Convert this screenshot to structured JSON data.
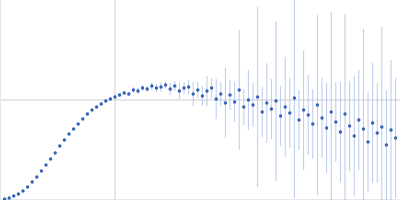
{
  "chart_data": {
    "type": "scatter",
    "marker": "circle",
    "color": "#3461b8",
    "grid": true,
    "tick_labels": false,
    "xlim": [
      0,
      3.478
    ],
    "xticks": [
      1
    ],
    "ylim": [
      0,
      2
    ],
    "yticks": [
      1
    ],
    "x": [
      0.04,
      0.08,
      0.12,
      0.16,
      0.2,
      0.24,
      0.28,
      0.32,
      0.36,
      0.4,
      0.44,
      0.48,
      0.52,
      0.56,
      0.6,
      0.64,
      0.68,
      0.72,
      0.76,
      0.8,
      0.84,
      0.88,
      0.92,
      0.96,
      1.0,
      1.04,
      1.08,
      1.12,
      1.16,
      1.2,
      1.24,
      1.28,
      1.32,
      1.36,
      1.4,
      1.44,
      1.48,
      1.52,
      1.56,
      1.6,
      1.64,
      1.68,
      1.72,
      1.76,
      1.8,
      1.84,
      1.88,
      1.92,
      1.96,
      2.0,
      2.04,
      2.08,
      2.12,
      2.16,
      2.2,
      2.24,
      2.28,
      2.32,
      2.36,
      2.4,
      2.44,
      2.48,
      2.52,
      2.56,
      2.6,
      2.64,
      2.68,
      2.72,
      2.76,
      2.8,
      2.84,
      2.88,
      2.92,
      2.96,
      3.0,
      3.04,
      3.08,
      3.12,
      3.16,
      3.2,
      3.24,
      3.28,
      3.32,
      3.36,
      3.4,
      3.44
    ],
    "values": [
      0.01,
      0.02,
      0.04,
      0.06,
      0.09,
      0.13,
      0.18,
      0.23,
      0.29,
      0.35,
      0.41,
      0.47,
      0.54,
      0.6,
      0.66,
      0.71,
      0.76,
      0.81,
      0.86,
      0.9,
      0.93,
      0.96,
      0.99,
      1.01,
      1.03,
      1.05,
      1.07,
      1.06,
      1.1,
      1.09,
      1.12,
      1.11,
      1.14,
      1.12,
      1.13,
      1.15,
      1.11,
      1.14,
      1.09,
      1.12,
      1.13,
      1.06,
      1.1,
      1.04,
      1.09,
      1.12,
      1.01,
      1.06,
      0.97,
      1.05,
      0.98,
      1.1,
      0.93,
      1.0,
      0.95,
      1.03,
      0.88,
      0.97,
      0.91,
      0.99,
      0.84,
      0.93,
      0.87,
      1.02,
      0.8,
      0.9,
      0.85,
      0.76,
      0.95,
      0.82,
      0.72,
      0.88,
      0.78,
      0.68,
      0.86,
      0.74,
      0.64,
      0.8,
      0.71,
      0.58,
      0.77,
      0.67,
      0.73,
      0.55,
      0.7,
      0.62
    ],
    "errors": [
      0.005,
      0.005,
      0.005,
      0.005,
      0.005,
      0.005,
      0.005,
      0.005,
      0.005,
      0.005,
      0.005,
      0.008,
      0.008,
      0.008,
      0.008,
      0.01,
      0.01,
      0.01,
      0.01,
      0.01,
      0.015,
      0.015,
      0.015,
      0.02,
      0.02,
      0.02,
      0.02,
      0.02,
      0.03,
      0.03,
      0.03,
      0.03,
      0.04,
      0.04,
      0.05,
      0.04,
      0.06,
      0.05,
      0.08,
      0.06,
      0.07,
      0.12,
      0.08,
      0.1,
      0.15,
      0.1,
      0.2,
      0.12,
      0.35,
      0.15,
      0.2,
      0.6,
      0.18,
      0.3,
      0.22,
      0.9,
      0.25,
      0.4,
      0.3,
      0.8,
      0.3,
      0.5,
      0.35,
      1.0,
      0.3,
      0.6,
      0.4,
      0.35,
      0.9,
      0.4,
      0.45,
      1.0,
      0.4,
      0.5,
      1.0,
      0.45,
      0.6,
      0.5,
      1.0,
      0.5,
      0.6,
      0.5,
      1.0,
      0.55,
      0.7,
      0.6
    ]
  }
}
